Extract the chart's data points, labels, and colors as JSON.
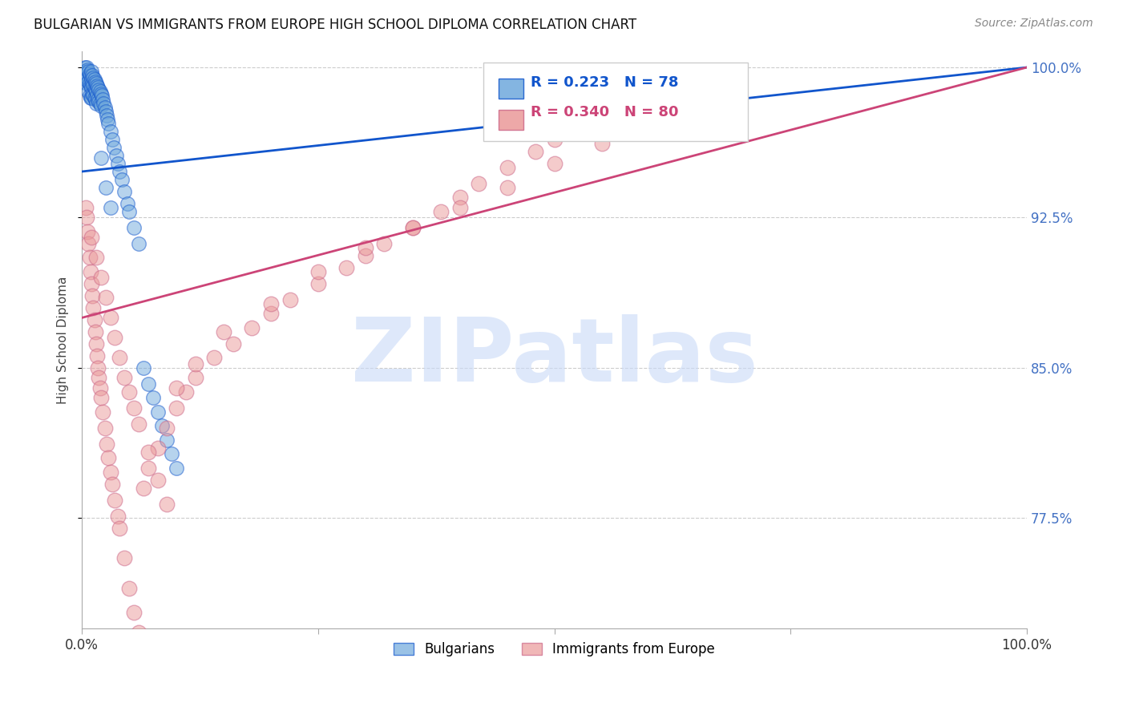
{
  "title": "BULGARIAN VS IMMIGRANTS FROM EUROPE HIGH SCHOOL DIPLOMA CORRELATION CHART",
  "source": "Source: ZipAtlas.com",
  "ylabel": "High School Diploma",
  "yticks": [
    0.775,
    0.85,
    0.925,
    1.0
  ],
  "ytick_labels": [
    "77.5%",
    "85.0%",
    "92.5%",
    "100.0%"
  ],
  "xmin": 0.0,
  "xmax": 1.0,
  "ymin": 0.72,
  "ymax": 1.008,
  "blue_R": 0.223,
  "blue_N": 78,
  "pink_R": 0.34,
  "pink_N": 80,
  "blue_color": "#6fa8dc",
  "pink_color": "#ea9999",
  "blue_line_color": "#1155cc",
  "pink_line_color": "#cc4477",
  "watermark_text": "ZIPatlas",
  "legend_label_blue": "Bulgarians",
  "legend_label_pink": "Immigrants from Europe",
  "blue_line_x0": 0.0,
  "blue_line_y0": 0.948,
  "blue_line_x1": 1.0,
  "blue_line_y1": 1.0,
  "pink_line_x0": 0.0,
  "pink_line_y0": 0.875,
  "pink_line_x1": 1.0,
  "pink_line_y1": 1.0,
  "blue_pts_x": [
    0.002,
    0.003,
    0.004,
    0.004,
    0.005,
    0.005,
    0.005,
    0.006,
    0.006,
    0.007,
    0.007,
    0.007,
    0.008,
    0.008,
    0.008,
    0.009,
    0.009,
    0.009,
    0.01,
    0.01,
    0.01,
    0.01,
    0.011,
    0.011,
    0.011,
    0.012,
    0.012,
    0.012,
    0.013,
    0.013,
    0.013,
    0.014,
    0.014,
    0.014,
    0.015,
    0.015,
    0.015,
    0.016,
    0.016,
    0.017,
    0.017,
    0.018,
    0.018,
    0.019,
    0.019,
    0.02,
    0.02,
    0.021,
    0.022,
    0.023,
    0.024,
    0.025,
    0.026,
    0.027,
    0.028,
    0.03,
    0.032,
    0.034,
    0.036,
    0.038,
    0.04,
    0.042,
    0.045,
    0.048,
    0.05,
    0.055,
    0.06,
    0.065,
    0.07,
    0.075,
    0.08,
    0.085,
    0.09,
    0.095,
    0.1,
    0.02,
    0.025,
    0.03
  ],
  "blue_pts_y": [
    0.998,
    1.0,
    0.997,
    0.994,
    1.0,
    0.997,
    0.992,
    0.999,
    0.995,
    0.998,
    0.993,
    0.988,
    0.997,
    0.992,
    0.986,
    0.996,
    0.991,
    0.985,
    0.998,
    0.994,
    0.99,
    0.985,
    0.996,
    0.992,
    0.987,
    0.995,
    0.991,
    0.986,
    0.994,
    0.99,
    0.985,
    0.993,
    0.989,
    0.984,
    0.992,
    0.988,
    0.982,
    0.991,
    0.986,
    0.99,
    0.984,
    0.989,
    0.983,
    0.988,
    0.982,
    0.987,
    0.981,
    0.986,
    0.984,
    0.982,
    0.98,
    0.978,
    0.976,
    0.974,
    0.972,
    0.968,
    0.964,
    0.96,
    0.956,
    0.952,
    0.948,
    0.944,
    0.938,
    0.932,
    0.928,
    0.92,
    0.912,
    0.85,
    0.842,
    0.835,
    0.828,
    0.821,
    0.814,
    0.807,
    0.8,
    0.955,
    0.94,
    0.93
  ],
  "pink_pts_x": [
    0.004,
    0.005,
    0.006,
    0.007,
    0.008,
    0.009,
    0.01,
    0.011,
    0.012,
    0.013,
    0.014,
    0.015,
    0.016,
    0.017,
    0.018,
    0.019,
    0.02,
    0.022,
    0.024,
    0.026,
    0.028,
    0.03,
    0.032,
    0.035,
    0.038,
    0.04,
    0.045,
    0.05,
    0.055,
    0.06,
    0.065,
    0.07,
    0.08,
    0.09,
    0.1,
    0.11,
    0.12,
    0.14,
    0.16,
    0.18,
    0.2,
    0.22,
    0.25,
    0.28,
    0.3,
    0.32,
    0.35,
    0.38,
    0.4,
    0.42,
    0.45,
    0.48,
    0.5,
    0.53,
    0.55,
    0.01,
    0.015,
    0.02,
    0.025,
    0.03,
    0.035,
    0.04,
    0.045,
    0.05,
    0.055,
    0.06,
    0.07,
    0.08,
    0.09,
    0.1,
    0.12,
    0.15,
    0.2,
    0.25,
    0.3,
    0.35,
    0.4,
    0.45,
    0.5,
    0.55
  ],
  "pink_pts_y": [
    0.93,
    0.925,
    0.918,
    0.912,
    0.905,
    0.898,
    0.892,
    0.886,
    0.88,
    0.874,
    0.868,
    0.862,
    0.856,
    0.85,
    0.845,
    0.84,
    0.835,
    0.828,
    0.82,
    0.812,
    0.805,
    0.798,
    0.792,
    0.784,
    0.776,
    0.77,
    0.755,
    0.74,
    0.728,
    0.718,
    0.79,
    0.8,
    0.81,
    0.82,
    0.83,
    0.838,
    0.845,
    0.855,
    0.862,
    0.87,
    0.877,
    0.884,
    0.892,
    0.9,
    0.906,
    0.912,
    0.92,
    0.928,
    0.935,
    0.942,
    0.95,
    0.958,
    0.964,
    0.97,
    0.976,
    0.915,
    0.905,
    0.895,
    0.885,
    0.875,
    0.865,
    0.855,
    0.845,
    0.838,
    0.83,
    0.822,
    0.808,
    0.794,
    0.782,
    0.84,
    0.852,
    0.868,
    0.882,
    0.898,
    0.91,
    0.92,
    0.93,
    0.94,
    0.952,
    0.962
  ]
}
